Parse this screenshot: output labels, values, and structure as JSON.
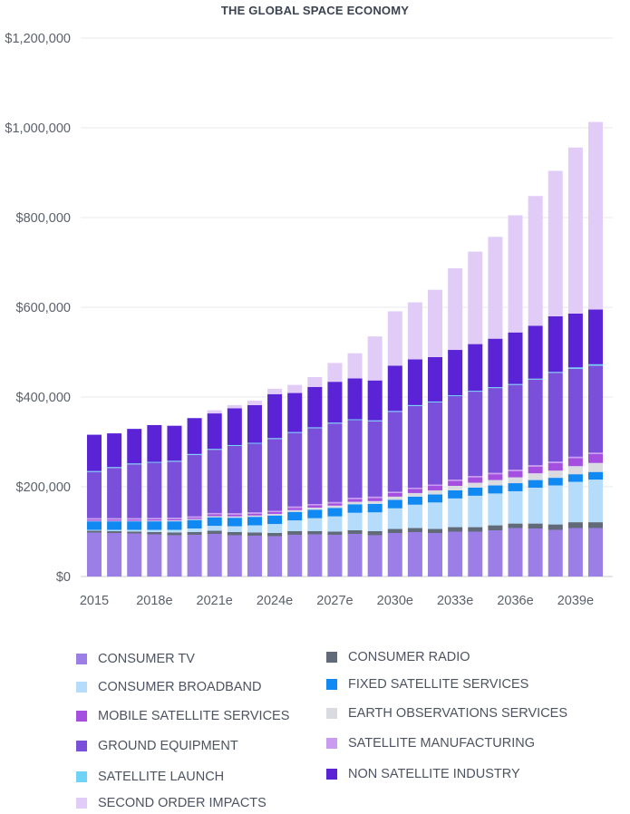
{
  "chart_data": {
    "type": "bar",
    "stacked": true,
    "title": "THE GLOBAL SPACE ECONOMY",
    "xlabel": "",
    "ylabel": "",
    "ylim": [
      0,
      1200000
    ],
    "yticks": [
      {
        "value": 0,
        "label": "$0"
      },
      {
        "value": 200000,
        "label": "$200,000"
      },
      {
        "value": 400000,
        "label": "$400,000"
      },
      {
        "value": 600000,
        "label": "$600,000"
      },
      {
        "value": 800000,
        "label": "$800,000"
      },
      {
        "value": 1000000,
        "label": "$1,000,000"
      },
      {
        "value": 1200000,
        "label": "$1,200,000"
      }
    ],
    "grid": true,
    "categories": [
      "2015",
      "2016",
      "2017",
      "2018e",
      "2019e",
      "2020e",
      "2021e",
      "2022e",
      "2023e",
      "2024e",
      "2025e",
      "2026e",
      "2027e",
      "2028e",
      "2029e",
      "2030e",
      "2031e",
      "2032e",
      "2033e",
      "2034e",
      "2035e",
      "2036e",
      "2037e",
      "2038e",
      "2039e",
      "2040e"
    ],
    "x_tick_labels": [
      "2015",
      "",
      "",
      "2018e",
      "",
      "",
      "2021e",
      "",
      "",
      "2024e",
      "",
      "",
      "2027e",
      "",
      "",
      "2030e",
      "",
      "",
      "2033e",
      "",
      "",
      "2036e",
      "",
      "",
      "2039e",
      ""
    ],
    "series": [
      {
        "name": "CONSUMER TV",
        "color": "#9b7fe6",
        "values": [
          98000,
          97000,
          96000,
          94000,
          92000,
          93000,
          95000,
          92000,
          91000,
          90000,
          93000,
          94000,
          93000,
          95000,
          92000,
          97000,
          99000,
          97000,
          100000,
          100000,
          103000,
          108000,
          107000,
          104000,
          108000,
          108000
        ]
      },
      {
        "name": "CONSUMER RADIO",
        "color": "#616a78",
        "values": [
          4000,
          4000,
          4000,
          5000,
          6000,
          6000,
          7000,
          7000,
          7000,
          7000,
          8000,
          7000,
          7000,
          8000,
          9000,
          9000,
          9000,
          9000,
          10000,
          10000,
          11000,
          10000,
          11000,
          12000,
          13000,
          13000
        ]
      },
      {
        "name": "CONSUMER BROADBAND",
        "color": "#b6dcfb",
        "values": [
          2000,
          3000,
          4000,
          5000,
          6000,
          8000,
          11000,
          13000,
          16000,
          20000,
          24000,
          29000,
          34000,
          39000,
          42000,
          46000,
          52000,
          59000,
          64000,
          70000,
          71000,
          72000,
          80000,
          87000,
          90000,
          95000
        ]
      },
      {
        "name": "FIXED SATELLITE SERVICES",
        "color": "#1189f2",
        "values": [
          19000,
          19000,
          19000,
          19000,
          19000,
          19000,
          19000,
          19000,
          19000,
          19000,
          19000,
          19000,
          19000,
          19000,
          19000,
          19000,
          18000,
          18000,
          18000,
          18000,
          18000,
          18000,
          17000,
          17000,
          17000,
          17000
        ]
      },
      {
        "name": "EARTH OBSERVATIONS SERVICES",
        "color": "#dadbe1",
        "values": [
          1000,
          1000,
          1000,
          1500,
          2000,
          2000,
          2500,
          3000,
          3000,
          3500,
          4000,
          4500,
          5000,
          5500,
          6000,
          7000,
          8000,
          9000,
          10000,
          11000,
          12000,
          13000,
          15000,
          16000,
          18000,
          20000
        ]
      },
      {
        "name": "MOBILE SATELLITE SERVICES",
        "color": "#a44fe0",
        "values": [
          3000,
          3000,
          3000,
          3000,
          3000,
          3000,
          4000,
          4000,
          4000,
          4000,
          5000,
          5000,
          5000,
          6000,
          7000,
          8000,
          9000,
          10000,
          11000,
          12000,
          13000,
          14000,
          15000,
          17000,
          18000,
          20000
        ]
      },
      {
        "name": "SATELLITE MANUFACTURING",
        "color": "#c99cef",
        "values": [
          3000,
          3000,
          3000,
          3000,
          3000,
          3000,
          3000,
          3000,
          3000,
          3000,
          3000,
          3000,
          3000,
          3000,
          3000,
          3000,
          3000,
          3000,
          3000,
          3000,
          3000,
          3000,
          3000,
          3000,
          3000,
          3000
        ]
      },
      {
        "name": "GROUND EQUIPMENT",
        "color": "#7a4fda",
        "values": [
          103000,
          112000,
          120000,
          123000,
          125000,
          137000,
          141000,
          150000,
          153000,
          160000,
          164000,
          169000,
          175000,
          173000,
          168000,
          178000,
          182000,
          183000,
          186000,
          188000,
          189000,
          189000,
          191000,
          198000,
          196000,
          194000
        ]
      },
      {
        "name": "SATELLITE LAUNCH",
        "color": "#6fd3f7",
        "values": [
          2000,
          2000,
          2000,
          2000,
          2000,
          2000,
          2000,
          2000,
          2000,
          2000,
          2000,
          2000,
          2000,
          2000,
          2000,
          2000,
          2000,
          2000,
          2000,
          2000,
          2000,
          2000,
          2000,
          2000,
          3000,
          3000
        ]
      },
      {
        "name": "NON SATELLITE INDUSTRY",
        "color": "#5a23d6",
        "values": [
          81000,
          75000,
          77000,
          82000,
          78000,
          80000,
          79000,
          82000,
          84000,
          98000,
          87000,
          90000,
          91000,
          91000,
          89000,
          101000,
          102000,
          99000,
          101000,
          104000,
          108000,
          115000,
          118000,
          124000,
          120000,
          122000
        ]
      },
      {
        "name": "SECOND ORDER IMPACTS",
        "color": "#e1ccf8",
        "values": [
          0,
          0,
          0,
          0,
          0,
          0,
          7000,
          7000,
          10000,
          12000,
          18000,
          22000,
          42000,
          56000,
          98000,
          121000,
          127000,
          150000,
          182000,
          206000,
          227000,
          261000,
          289000,
          324000,
          370000,
          418000
        ]
      }
    ]
  },
  "legend": {
    "left": [
      {
        "label": "CONSUMER TV",
        "color": "#9b7fe6"
      },
      {
        "label": "CONSUMER BROADBAND",
        "color": "#b6dcfb"
      },
      {
        "label": "MOBILE SATELLITE SERVICES",
        "color": "#a44fe0"
      },
      {
        "label": "GROUND EQUIPMENT",
        "color": "#7a4fda"
      },
      {
        "label": "SATELLITE LAUNCH",
        "color": "#6fd3f7"
      },
      {
        "label": "SECOND ORDER IMPACTS",
        "color": "#e1ccf8"
      }
    ],
    "right": [
      {
        "label": "CONSUMER RADIO",
        "color": "#616a78"
      },
      {
        "label": "FIXED SATELLITE SERVICES",
        "color": "#1189f2"
      },
      {
        "label": "EARTH OBSERVATIONS SERVICES",
        "color": "#dadbe1"
      },
      {
        "label": "SATELLITE MANUFACTURING",
        "color": "#c99cef"
      },
      {
        "label": "NON SATELLITE INDUSTRY",
        "color": "#5a23d6"
      }
    ]
  }
}
